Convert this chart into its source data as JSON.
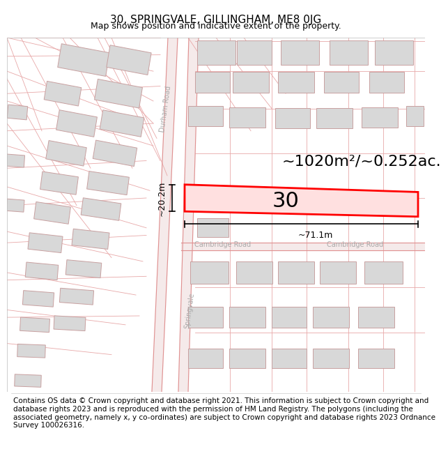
{
  "title": "30, SPRINGVALE, GILLINGHAM, ME8 0JG",
  "subtitle": "Map shows position and indicative extent of the property.",
  "area_text": "~1020m²/~0.252ac.",
  "number_label": "30",
  "dim_width": "~71.1m",
  "dim_height": "~20.2m",
  "footer": "Contains OS data © Crown copyright and database right 2021. This information is subject to Crown copyright and database rights 2023 and is reproduced with the permission of HM Land Registry. The polygons (including the associated geometry, namely x, y co-ordinates) are subject to Crown copyright and database rights 2023 Ordnance Survey 100026316.",
  "road_color": "#e8a0a0",
  "road_outline": "#e09090",
  "building_fill": "#d8d8d8",
  "building_edge": "#c8a0a0",
  "highlight_fill": "#ffe0e0",
  "highlight_edge": "#ff0000",
  "title_fontsize": 11,
  "subtitle_fontsize": 9,
  "footer_fontsize": 7.5,
  "area_fontsize": 16,
  "label_fontsize": 22,
  "dim_fontsize": 9,
  "road_label_fontsize": 7,
  "road_label_color": "#aaaaaa"
}
